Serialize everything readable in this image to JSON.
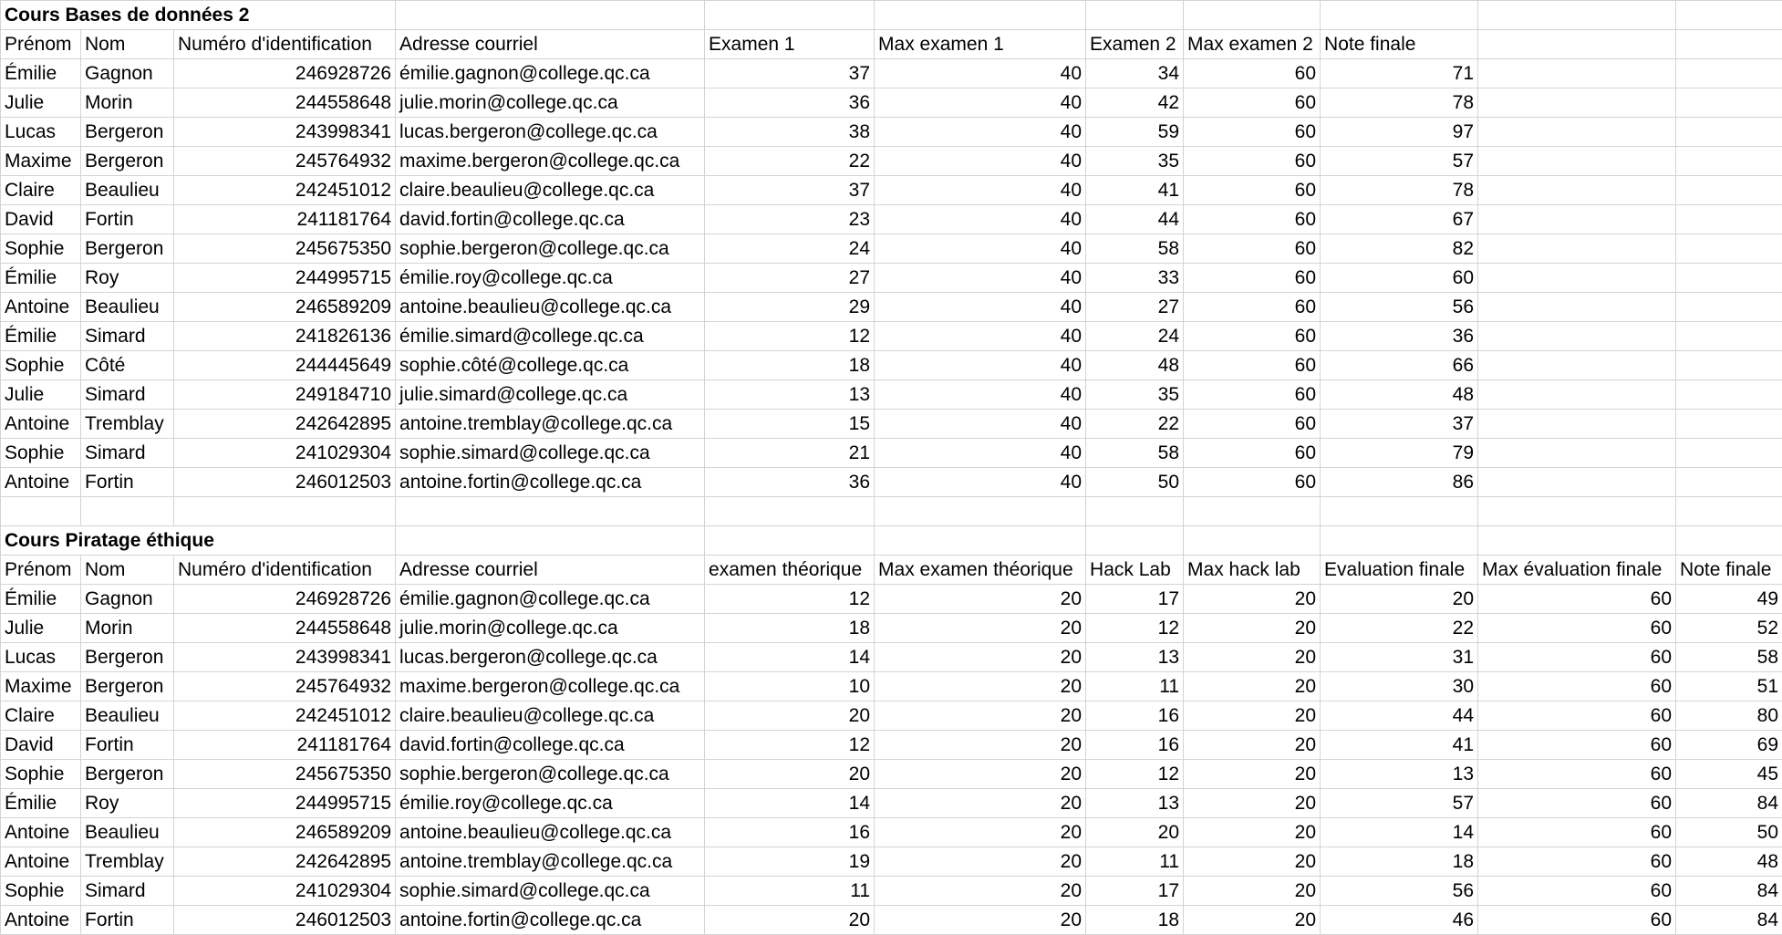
{
  "section1": {
    "title": "Cours Bases de données 2",
    "headers": [
      "Prénom",
      "Nom",
      "Numéro d'identification",
      "Adresse courriel",
      "Examen 1",
      "Max examen 1",
      "Examen 2",
      "Max examen 2",
      "Note finale"
    ],
    "rows": [
      [
        "Émilie",
        "Gagnon",
        "246928726",
        "émilie.gagnon@college.qc.ca",
        "37",
        "40",
        "34",
        "60",
        "71"
      ],
      [
        "Julie",
        "Morin",
        "244558648",
        "julie.morin@college.qc.ca",
        "36",
        "40",
        "42",
        "60",
        "78"
      ],
      [
        "Lucas",
        "Bergeron",
        "243998341",
        "lucas.bergeron@college.qc.ca",
        "38",
        "40",
        "59",
        "60",
        "97"
      ],
      [
        "Maxime",
        "Bergeron",
        "245764932",
        "maxime.bergeron@college.qc.ca",
        "22",
        "40",
        "35",
        "60",
        "57"
      ],
      [
        "Claire",
        "Beaulieu",
        "242451012",
        "claire.beaulieu@college.qc.ca",
        "37",
        "40",
        "41",
        "60",
        "78"
      ],
      [
        "David",
        "Fortin",
        "241181764",
        "david.fortin@college.qc.ca",
        "23",
        "40",
        "44",
        "60",
        "67"
      ],
      [
        "Sophie",
        "Bergeron",
        "245675350",
        "sophie.bergeron@college.qc.ca",
        "24",
        "40",
        "58",
        "60",
        "82"
      ],
      [
        "Émilie",
        "Roy",
        "244995715",
        "émilie.roy@college.qc.ca",
        "27",
        "40",
        "33",
        "60",
        "60"
      ],
      [
        "Antoine",
        "Beaulieu",
        "246589209",
        "antoine.beaulieu@college.qc.ca",
        "29",
        "40",
        "27",
        "60",
        "56"
      ],
      [
        "Émilie",
        "Simard",
        "241826136",
        "émilie.simard@college.qc.ca",
        "12",
        "40",
        "24",
        "60",
        "36"
      ],
      [
        "Sophie",
        "Côté",
        "244445649",
        "sophie.côté@college.qc.ca",
        "18",
        "40",
        "48",
        "60",
        "66"
      ],
      [
        "Julie",
        "Simard",
        "249184710",
        "julie.simard@college.qc.ca",
        "13",
        "40",
        "35",
        "60",
        "48"
      ],
      [
        "Antoine",
        "Tremblay",
        "242642895",
        "antoine.tremblay@college.qc.ca",
        "15",
        "40",
        "22",
        "60",
        "37"
      ],
      [
        "Sophie",
        "Simard",
        "241029304",
        "sophie.simard@college.qc.ca",
        "21",
        "40",
        "58",
        "60",
        "79"
      ],
      [
        "Antoine",
        "Fortin",
        "246012503",
        "antoine.fortin@college.qc.ca",
        "36",
        "40",
        "50",
        "60",
        "86"
      ]
    ]
  },
  "section2": {
    "title": "Cours Piratage éthique",
    "headers": [
      "Prénom",
      "Nom",
      "Numéro d'identification",
      "Adresse courriel",
      "examen théorique",
      "Max examen théorique",
      "Hack Lab",
      "Max hack lab",
      "Evaluation finale",
      "Max évaluation finale",
      "Note finale"
    ],
    "rows": [
      [
        "Émilie",
        "Gagnon",
        "246928726",
        "émilie.gagnon@college.qc.ca",
        "12",
        "20",
        "17",
        "20",
        "20",
        "60",
        "49"
      ],
      [
        "Julie",
        "Morin",
        "244558648",
        "julie.morin@college.qc.ca",
        "18",
        "20",
        "12",
        "20",
        "22",
        "60",
        "52"
      ],
      [
        "Lucas",
        "Bergeron",
        "243998341",
        "lucas.bergeron@college.qc.ca",
        "14",
        "20",
        "13",
        "20",
        "31",
        "60",
        "58"
      ],
      [
        "Maxime",
        "Bergeron",
        "245764932",
        "maxime.bergeron@college.qc.ca",
        "10",
        "20",
        "11",
        "20",
        "30",
        "60",
        "51"
      ],
      [
        "Claire",
        "Beaulieu",
        "242451012",
        "claire.beaulieu@college.qc.ca",
        "20",
        "20",
        "16",
        "20",
        "44",
        "60",
        "80"
      ],
      [
        "David",
        "Fortin",
        "241181764",
        "david.fortin@college.qc.ca",
        "12",
        "20",
        "16",
        "20",
        "41",
        "60",
        "69"
      ],
      [
        "Sophie",
        "Bergeron",
        "245675350",
        "sophie.bergeron@college.qc.ca",
        "20",
        "20",
        "12",
        "20",
        "13",
        "60",
        "45"
      ],
      [
        "Émilie",
        "Roy",
        "244995715",
        "émilie.roy@college.qc.ca",
        "14",
        "20",
        "13",
        "20",
        "57",
        "60",
        "84"
      ],
      [
        "Antoine",
        "Beaulieu",
        "246589209",
        "antoine.beaulieu@college.qc.ca",
        "16",
        "20",
        "20",
        "20",
        "14",
        "60",
        "50"
      ],
      [
        "Antoine",
        "Tremblay",
        "242642895",
        "antoine.tremblay@college.qc.ca",
        "19",
        "20",
        "11",
        "20",
        "18",
        "60",
        "48"
      ],
      [
        "Sophie",
        "Simard",
        "241029304",
        "sophie.simard@college.qc.ca",
        "11",
        "20",
        "17",
        "20",
        "56",
        "60",
        "84"
      ],
      [
        "Antoine",
        "Fortin",
        "246012503",
        "antoine.fortin@college.qc.ca",
        "20",
        "20",
        "18",
        "20",
        "46",
        "60",
        "84"
      ]
    ]
  },
  "colors": {
    "gridline": "#d4d4d4",
    "background": "#ffffff",
    "text": "#000000"
  }
}
